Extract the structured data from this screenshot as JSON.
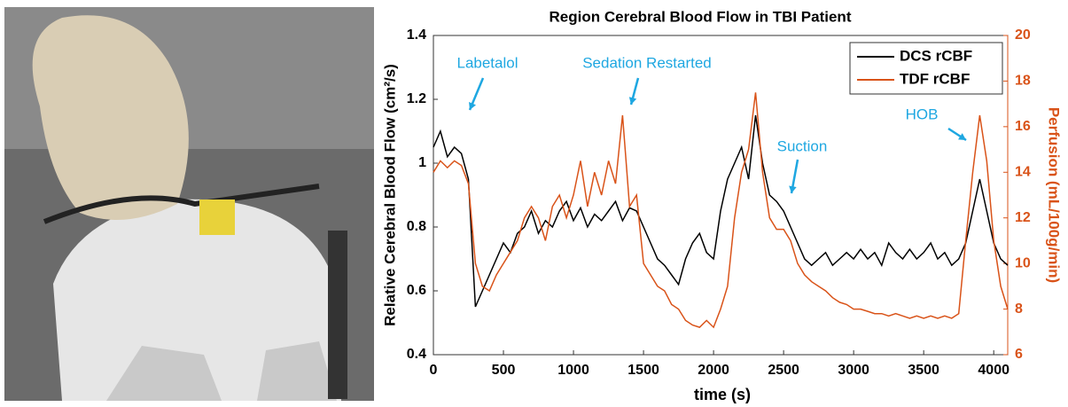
{
  "chart_data": {
    "type": "line",
    "title": "Region Cerebral Blood Flow in TBI Patient",
    "x_label": "time (s)",
    "y_label": "Relative Cerebral Blood Flow (cm²/s)",
    "y2_label": "Perfusion (mL/100g/min)",
    "xlim": [
      0,
      4100
    ],
    "xticks": [
      0,
      500,
      1000,
      1500,
      2000,
      2500,
      3000,
      3500,
      4000
    ],
    "ylim": [
      0.4,
      1.4
    ],
    "yticks": [
      0.4,
      0.6,
      0.8,
      1,
      1.2,
      1.4
    ],
    "y2lim": [
      6,
      20
    ],
    "y2ticks": [
      6,
      8,
      10,
      12,
      14,
      16,
      18,
      20
    ],
    "legend": "northeast",
    "x": [
      0,
      50,
      100,
      150,
      200,
      250,
      300,
      350,
      400,
      450,
      500,
      550,
      600,
      650,
      700,
      750,
      800,
      850,
      900,
      950,
      1000,
      1050,
      1100,
      1150,
      1200,
      1250,
      1300,
      1350,
      1400,
      1450,
      1500,
      1550,
      1600,
      1650,
      1700,
      1750,
      1800,
      1850,
      1900,
      1950,
      2000,
      2050,
      2100,
      2150,
      2200,
      2250,
      2300,
      2350,
      2400,
      2450,
      2500,
      2550,
      2600,
      2650,
      2700,
      2750,
      2800,
      2850,
      2900,
      2950,
      3000,
      3050,
      3100,
      3150,
      3200,
      3250,
      3300,
      3350,
      3400,
      3450,
      3500,
      3550,
      3600,
      3650,
      3700,
      3750,
      3800,
      3850,
      3900,
      3950,
      4000,
      4050,
      4100
    ],
    "series": [
      {
        "name": "DCS rCBF",
        "color": "#000000",
        "axis": "y",
        "values": [
          1.05,
          1.1,
          1.02,
          1.05,
          1.03,
          0.95,
          0.55,
          0.6,
          0.65,
          0.7,
          0.75,
          0.72,
          0.78,
          0.8,
          0.85,
          0.78,
          0.82,
          0.8,
          0.85,
          0.88,
          0.82,
          0.86,
          0.8,
          0.84,
          0.82,
          0.85,
          0.88,
          0.82,
          0.86,
          0.85,
          0.8,
          0.75,
          0.7,
          0.68,
          0.65,
          0.62,
          0.7,
          0.75,
          0.78,
          0.72,
          0.7,
          0.85,
          0.95,
          1.0,
          1.05,
          0.95,
          1.15,
          1.0,
          0.9,
          0.88,
          0.85,
          0.8,
          0.75,
          0.7,
          0.68,
          0.7,
          0.72,
          0.68,
          0.7,
          0.72,
          0.7,
          0.73,
          0.7,
          0.72,
          0.68,
          0.75,
          0.72,
          0.7,
          0.73,
          0.7,
          0.72,
          0.75,
          0.7,
          0.72,
          0.68,
          0.7,
          0.75,
          0.85,
          0.95,
          0.85,
          0.75,
          0.7,
          0.68
        ]
      },
      {
        "name": "TDF rCBF",
        "color": "#d95319",
        "axis": "y2",
        "values": [
          14,
          14.5,
          14.2,
          14.5,
          14.3,
          13.5,
          10,
          9,
          8.8,
          9.5,
          10,
          10.5,
          11,
          12,
          12.5,
          12,
          11,
          12.5,
          13,
          12,
          13,
          14.5,
          12.5,
          14,
          13,
          14.5,
          13.5,
          16.5,
          12.5,
          13,
          10,
          9.5,
          9,
          8.8,
          8.2,
          8,
          7.5,
          7.3,
          7.2,
          7.5,
          7.2,
          8,
          9,
          12,
          14,
          15,
          17.5,
          14,
          12,
          11.5,
          11.5,
          11,
          10,
          9.5,
          9.2,
          9,
          8.8,
          8.5,
          8.3,
          8.2,
          8,
          8,
          7.9,
          7.8,
          7.8,
          7.7,
          7.8,
          7.7,
          7.6,
          7.7,
          7.6,
          7.7,
          7.6,
          7.7,
          7.6,
          7.8,
          11,
          14,
          16.5,
          14.5,
          11,
          9,
          8
        ]
      }
    ],
    "annotations": [
      {
        "text": "Labetalol"
      },
      {
        "text": "Sedation Restarted"
      },
      {
        "text": "Suction"
      },
      {
        "text": "HOB"
      }
    ]
  }
}
